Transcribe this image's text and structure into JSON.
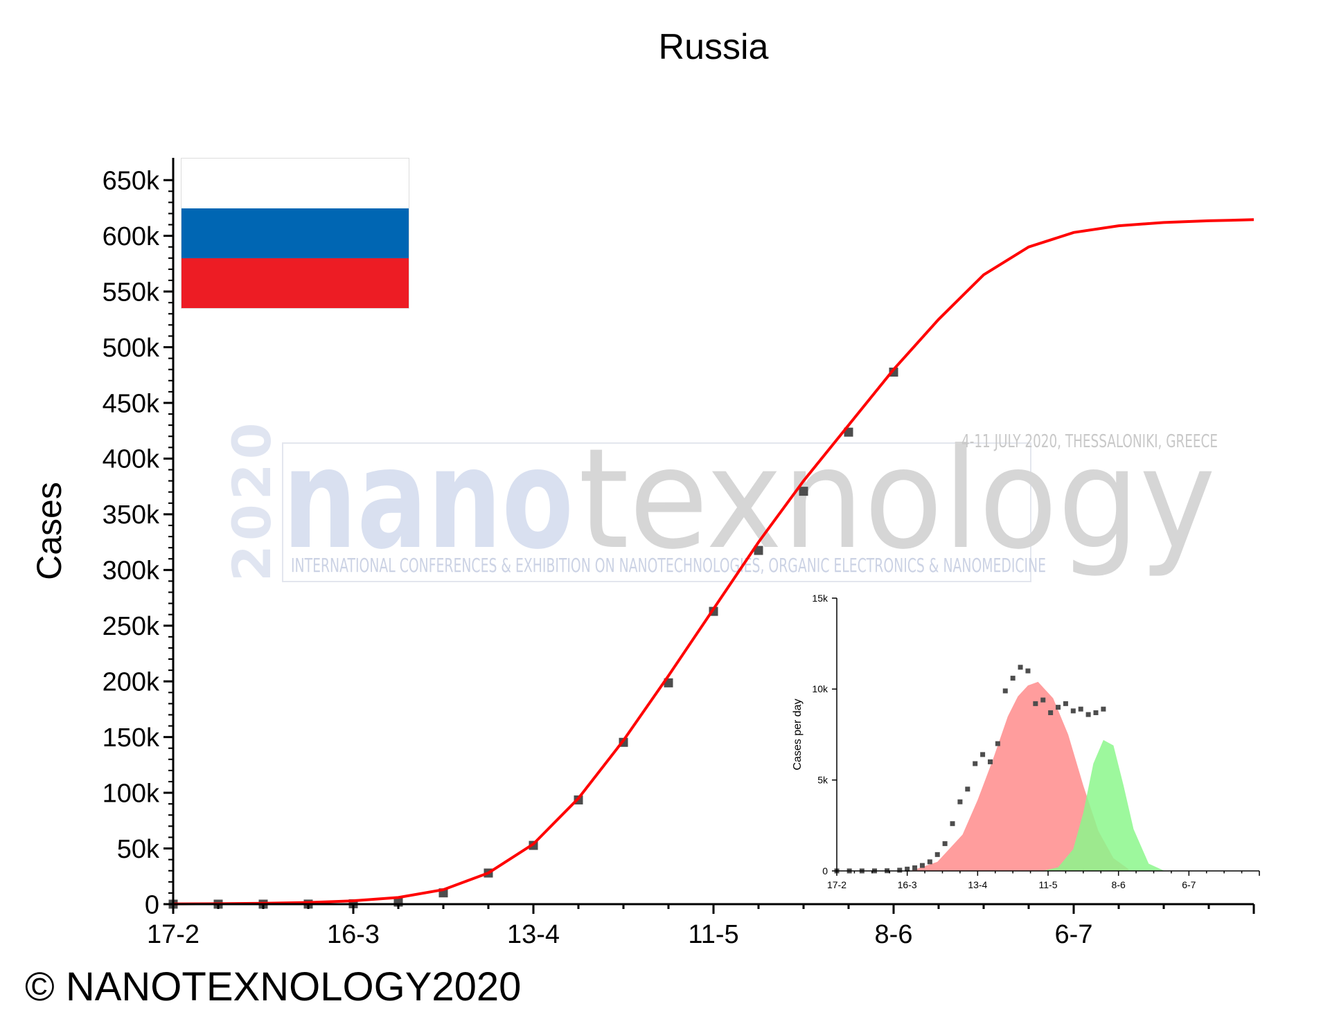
{
  "chart_data": [
    {
      "type": "scatter",
      "title": "Russia",
      "xlabel": "",
      "ylabel": "Cases",
      "x_ticks": [
        "17-2",
        "16-3",
        "13-4",
        "11-5",
        "8-6",
        "6-7"
      ],
      "y_ticks": [
        "0",
        "50k",
        "100k",
        "150k",
        "200k",
        "250k",
        "300k",
        "350k",
        "400k",
        "450k",
        "500k",
        "550k",
        "600k",
        "650k"
      ],
      "xlim": [
        0,
        168
      ],
      "ylim": [
        0,
        670000
      ],
      "grid": false,
      "legend": "none",
      "series": [
        {
          "kind": "scatter",
          "color": "#4d4d4d",
          "day_values": [
            0,
            7,
            14,
            21,
            28,
            35,
            42,
            49,
            56,
            63,
            70,
            77,
            84,
            91,
            98,
            105,
            112
          ],
          "values": [
            2,
            2,
            5,
            63,
            350,
            1836,
            10131,
            27938,
            52763,
            93558,
            145268,
            198676,
            262843,
            317554,
            370680,
            423741,
            477641
          ]
        },
        {
          "kind": "fit-line",
          "color": "#ff0000",
          "day_values": [
            0,
            7,
            14,
            21,
            28,
            35,
            42,
            49,
            56,
            63,
            70,
            77,
            84,
            91,
            98,
            105,
            112,
            119,
            126,
            133,
            140,
            147,
            154,
            161,
            168
          ],
          "values": [
            200,
            400,
            800,
            1500,
            3000,
            6000,
            13000,
            28000,
            54000,
            95000,
            147000,
            205000,
            265000,
            325000,
            380000,
            430000,
            480000,
            525000,
            565000,
            590000,
            603000,
            609000,
            612000,
            613500,
            614500
          ]
        }
      ]
    },
    {
      "type": "scatter",
      "title": "",
      "xlabel": "",
      "ylabel": "Cases per day",
      "x_ticks": [
        "17-2",
        "16-3",
        "13-4",
        "11-5",
        "8-6",
        "6-7"
      ],
      "y_ticks": [
        "0",
        "5k",
        "10k",
        "15k"
      ],
      "xlim": [
        0,
        168
      ],
      "ylim": [
        0,
        15000
      ],
      "grid": false,
      "legend": "none",
      "series": [
        {
          "kind": "scatter",
          "color": "#4d4d4d",
          "day_values": [
            0,
            5,
            10,
            15,
            20,
            25,
            28,
            31,
            34,
            37,
            40,
            43,
            46,
            49,
            52,
            55,
            58,
            61,
            64,
            67,
            70,
            73,
            76,
            79,
            82,
            85,
            88,
            91,
            94,
            97,
            100,
            103,
            106
          ],
          "values": [
            0,
            0,
            0,
            2,
            10,
            40,
            100,
            170,
            300,
            500,
            900,
            1500,
            2600,
            3800,
            4500,
            5900,
            6400,
            6000,
            7000,
            9900,
            10600,
            11200,
            11000,
            9200,
            9400,
            8700,
            9000,
            9200,
            8800,
            8900,
            8600,
            8700,
            8900
          ]
        },
        {
          "kind": "area",
          "color": "#ff8c8c",
          "day_values": [
            30,
            40,
            50,
            56,
            62,
            68,
            72,
            76,
            80,
            86,
            92,
            98,
            104,
            110,
            116
          ],
          "values": [
            30,
            500,
            2000,
            3900,
            6100,
            8500,
            9600,
            10200,
            10400,
            9500,
            7500,
            4700,
            2200,
            700,
            100
          ]
        },
        {
          "kind": "area",
          "color": "#8cf78c",
          "day_values": [
            82,
            88,
            94,
            98,
            102,
            106,
            110,
            114,
            118,
            124,
            130
          ],
          "values": [
            10,
            200,
            1200,
            3200,
            5900,
            7200,
            6900,
            4700,
            2300,
            400,
            20
          ]
        }
      ]
    }
  ],
  "flag": {
    "colors": [
      "#ffffff",
      "#0066b3",
      "#ed1c24"
    ]
  },
  "watermark": {
    "year": "2020",
    "word_a": "nano",
    "word_b": "texnology",
    "tagline": "4-11 JULY 2020, THESSALONIKI, GREECE",
    "subtitle": "INTERNATIONAL CONFERENCES & EXHIBITION ON NANOTECHNOLOGIES, ORGANIC ELECTRONICS & NANOMEDICINE"
  },
  "copyright": "© NANOTEXNOLOGY2020"
}
